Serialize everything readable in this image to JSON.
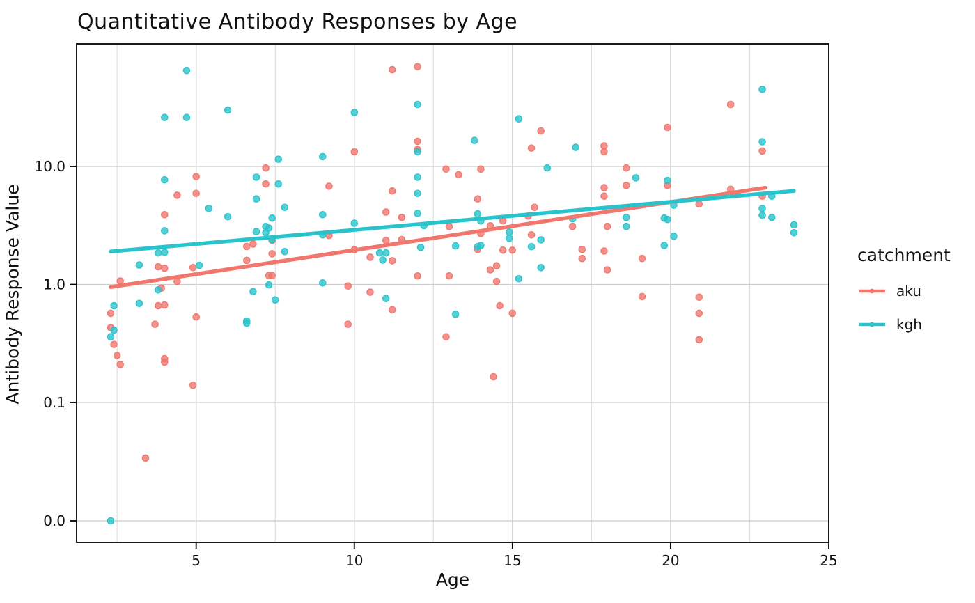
{
  "chart_data": {
    "type": "scatter",
    "title": "Quantitative Antibody Responses by Age",
    "xlabel": "Age",
    "ylabel": "Antibody Response Value",
    "x_axis": {
      "min": 1.22,
      "max": 25,
      "major_ticks": [
        5,
        10,
        15,
        20,
        25
      ],
      "tick_labels": [
        "5",
        "10",
        "15",
        "20",
        "25"
      ],
      "minor_gridlines": [
        2.5,
        7.5,
        12.5,
        17.5,
        22.5
      ]
    },
    "y_axis": {
      "scale": "symlog-linear-below-0.1",
      "tick_values": [
        10,
        1,
        0.1,
        0
      ],
      "tick_labels": [
        "10.0",
        "1.0",
        "0.1",
        "0.0"
      ],
      "grid": true
    },
    "legend": {
      "title": "catchment",
      "items": [
        {
          "label": "aku",
          "color": "#F0766E"
        },
        {
          "label": "kgh",
          "color": "#29C3CB"
        }
      ]
    },
    "series": [
      {
        "name": "aku",
        "color": "#F0766E",
        "trend": {
          "x": [
            2.3,
            23.0
          ],
          "y": [
            0.95,
            6.6
          ]
        },
        "points": [
          [
            2.3,
            0.57
          ],
          [
            2.3,
            0.43
          ],
          [
            2.4,
            0.31
          ],
          [
            2.5,
            0.25
          ],
          [
            2.6,
            1.07
          ],
          [
            2.6,
            0.21
          ],
          [
            3.4,
            0.053
          ],
          [
            3.7,
            0.46
          ],
          [
            3.8,
            1.41
          ],
          [
            3.8,
            0.66
          ],
          [
            3.9,
            0.93
          ],
          [
            4.0,
            3.9
          ],
          [
            4.0,
            1.37
          ],
          [
            4.0,
            0.67
          ],
          [
            4.0,
            0.235
          ],
          [
            4.0,
            0.22
          ],
          [
            4.4,
            5.7
          ],
          [
            4.4,
            1.06
          ],
          [
            4.9,
            1.39
          ],
          [
            4.9,
            0.14
          ],
          [
            5.0,
            8.2
          ],
          [
            5.0,
            5.9
          ],
          [
            5.0,
            0.53
          ],
          [
            6.6,
            2.1
          ],
          [
            6.6,
            1.6
          ],
          [
            6.8,
            2.2
          ],
          [
            7.2,
            9.7
          ],
          [
            7.2,
            7.1
          ],
          [
            7.3,
            1.19
          ],
          [
            7.4,
            2.36
          ],
          [
            7.4,
            1.82
          ],
          [
            7.4,
            1.19
          ],
          [
            9.2,
            6.8
          ],
          [
            9.2,
            2.6
          ],
          [
            9.8,
            0.97
          ],
          [
            9.8,
            0.46
          ],
          [
            10.0,
            13.3
          ],
          [
            10.0,
            1.97
          ],
          [
            10.5,
            1.7
          ],
          [
            10.5,
            0.86
          ],
          [
            11.0,
            4.1
          ],
          [
            11.0,
            2.36
          ],
          [
            11.2,
            66
          ],
          [
            11.2,
            6.2
          ],
          [
            11.2,
            1.59
          ],
          [
            11.2,
            0.61
          ],
          [
            11.5,
            3.7
          ],
          [
            11.5,
            2.4
          ],
          [
            12.0,
            70
          ],
          [
            12.0,
            16.3
          ],
          [
            12.0,
            13.9
          ],
          [
            12.0,
            1.18
          ],
          [
            12.9,
            9.5
          ],
          [
            12.9,
            0.36
          ],
          [
            13.0,
            3.1
          ],
          [
            13.0,
            1.18
          ],
          [
            13.3,
            8.5
          ],
          [
            13.9,
            5.3
          ],
          [
            13.9,
            1.98
          ],
          [
            14.0,
            9.5
          ],
          [
            14.0,
            2.7
          ],
          [
            14.3,
            3.14
          ],
          [
            14.3,
            1.33
          ],
          [
            14.4,
            0.165
          ],
          [
            14.5,
            1.44
          ],
          [
            14.5,
            1.06
          ],
          [
            14.6,
            0.66
          ],
          [
            14.7,
            3.45
          ],
          [
            14.7,
            1.95
          ],
          [
            15.0,
            1.95
          ],
          [
            15.0,
            0.57
          ],
          [
            15.5,
            3.8
          ],
          [
            15.6,
            14.3
          ],
          [
            15.6,
            2.63
          ],
          [
            15.7,
            4.5
          ],
          [
            15.9,
            20
          ],
          [
            16.9,
            3.1
          ],
          [
            17.2,
            1.98
          ],
          [
            17.2,
            1.66
          ],
          [
            17.9,
            14.9
          ],
          [
            17.9,
            13.3
          ],
          [
            17.9,
            6.6
          ],
          [
            17.9,
            5.6
          ],
          [
            17.9,
            1.92
          ],
          [
            18.0,
            3.1
          ],
          [
            18.0,
            1.33
          ],
          [
            18.6,
            9.7
          ],
          [
            18.6,
            6.9
          ],
          [
            19.1,
            1.66
          ],
          [
            19.1,
            0.79
          ],
          [
            19.9,
            21.4
          ],
          [
            19.9,
            6.9
          ],
          [
            20.9,
            4.8
          ],
          [
            20.9,
            0.78
          ],
          [
            20.9,
            0.57
          ],
          [
            20.9,
            0.34
          ],
          [
            21.9,
            33.5
          ],
          [
            21.9,
            6.4
          ],
          [
            22.9,
            13.5
          ],
          [
            22.9,
            5.6
          ]
        ]
      },
      {
        "name": "kgh",
        "color": "#29C3CB",
        "trend": {
          "x": [
            2.3,
            23.9
          ],
          "y": [
            1.9,
            6.2
          ]
        },
        "points": [
          [
            2.3,
            0.0
          ],
          [
            2.3,
            0.36
          ],
          [
            2.4,
            0.66
          ],
          [
            2.4,
            0.41
          ],
          [
            3.2,
            1.46
          ],
          [
            3.2,
            0.69
          ],
          [
            3.8,
            1.85
          ],
          [
            3.8,
            0.9
          ],
          [
            4.0,
            26
          ],
          [
            4.0,
            7.7
          ],
          [
            4.0,
            2.85
          ],
          [
            4.0,
            1.87
          ],
          [
            4.7,
            65
          ],
          [
            4.7,
            26
          ],
          [
            5.1,
            1.45
          ],
          [
            5.4,
            4.4
          ],
          [
            6.0,
            30
          ],
          [
            6.0,
            3.75
          ],
          [
            6.6,
            0.49
          ],
          [
            6.6,
            0.47
          ],
          [
            6.8,
            0.87
          ],
          [
            6.9,
            8.1
          ],
          [
            6.9,
            5.3
          ],
          [
            6.9,
            2.8
          ],
          [
            7.2,
            3.1
          ],
          [
            7.2,
            2.74
          ],
          [
            7.3,
            3.0
          ],
          [
            7.3,
            0.99
          ],
          [
            7.4,
            3.65
          ],
          [
            7.4,
            2.4
          ],
          [
            7.5,
            0.74
          ],
          [
            7.6,
            11.5
          ],
          [
            7.6,
            7.1
          ],
          [
            7.8,
            4.5
          ],
          [
            7.8,
            1.9
          ],
          [
            9.0,
            12.1
          ],
          [
            9.0,
            3.9
          ],
          [
            9.0,
            2.63
          ],
          [
            9.0,
            1.03
          ],
          [
            10.0,
            28.6
          ],
          [
            10.0,
            3.3
          ],
          [
            10.8,
            1.85
          ],
          [
            10.9,
            1.61
          ],
          [
            11.0,
            1.85
          ],
          [
            11.0,
            0.76
          ],
          [
            12.0,
            33.5
          ],
          [
            12.0,
            13.3
          ],
          [
            12.0,
            8.1
          ],
          [
            12.0,
            5.9
          ],
          [
            12.0,
            4.0
          ],
          [
            12.1,
            2.06
          ],
          [
            12.2,
            3.15
          ],
          [
            13.2,
            2.12
          ],
          [
            13.2,
            0.56
          ],
          [
            13.8,
            16.6
          ],
          [
            13.9,
            3.96
          ],
          [
            13.9,
            2.09
          ],
          [
            14.0,
            3.45
          ],
          [
            14.0,
            2.14
          ],
          [
            14.9,
            2.78
          ],
          [
            14.9,
            2.46
          ],
          [
            15.2,
            25.3
          ],
          [
            15.2,
            1.12
          ],
          [
            15.6,
            2.09
          ],
          [
            15.9,
            2.39
          ],
          [
            15.9,
            1.39
          ],
          [
            16.1,
            9.7
          ],
          [
            16.9,
            3.6
          ],
          [
            17.0,
            14.5
          ],
          [
            18.6,
            3.7
          ],
          [
            18.6,
            3.1
          ],
          [
            18.9,
            8.0
          ],
          [
            19.8,
            3.65
          ],
          [
            19.8,
            2.14
          ],
          [
            19.9,
            7.6
          ],
          [
            19.9,
            3.55
          ],
          [
            20.1,
            4.7
          ],
          [
            20.1,
            2.56
          ],
          [
            22.9,
            45
          ],
          [
            22.9,
            16.2
          ],
          [
            22.9,
            4.4
          ],
          [
            22.9,
            3.85
          ],
          [
            23.2,
            5.6
          ],
          [
            23.2,
            3.7
          ],
          [
            23.9,
            3.2
          ],
          [
            23.9,
            2.74
          ]
        ]
      }
    ]
  }
}
